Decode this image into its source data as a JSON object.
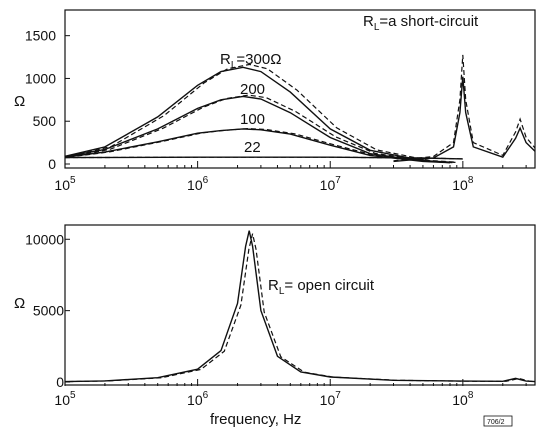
{
  "chart_data": [
    {
      "type": "line",
      "title": "",
      "xlabel": "",
      "ylabel": "Ω",
      "xscale": "log",
      "xlim": [
        100000,
        350000000
      ],
      "ylim": [
        0,
        1800
      ],
      "yticks": [
        "0",
        "500",
        "1000",
        "1500"
      ],
      "xticks": [
        {
          "base": "10",
          "exp": "5"
        },
        {
          "base": "10",
          "exp": "6"
        },
        {
          "base": "10",
          "exp": "7"
        },
        {
          "base": "10",
          "exp": "8"
        }
      ],
      "series": [
        {
          "name": "R_L=300Ω",
          "label": "RL=300Ω",
          "x": [
            100000,
            200000,
            500000,
            1000000,
            1500000,
            2200000,
            3000000,
            5000000,
            10000000,
            20000000,
            50000000,
            80000000
          ],
          "y": [
            90,
            200,
            550,
            920,
            1080,
            1130,
            1080,
            840,
            410,
            160,
            40,
            20
          ]
        },
        {
          "name": "200",
          "label": "200",
          "x": [
            100000,
            200000,
            500000,
            1000000,
            1500000,
            2200000,
            3000000,
            5000000,
            10000000,
            20000000,
            50000000,
            80000000
          ],
          "y": [
            85,
            170,
            410,
            650,
            750,
            790,
            760,
            600,
            310,
            120,
            35,
            18
          ]
        },
        {
          "name": "100",
          "label": "100",
          "x": [
            100000,
            200000,
            500000,
            1000000,
            1500000,
            2200000,
            3000000,
            5000000,
            10000000,
            20000000,
            50000000,
            80000000
          ],
          "y": [
            80,
            140,
            260,
            360,
            390,
            410,
            400,
            350,
            220,
            100,
            30,
            15
          ]
        },
        {
          "name": "22",
          "label": "22",
          "x": [
            100000,
            1000000,
            10000000,
            50000000,
            100000000
          ],
          "y": [
            75,
            80,
            80,
            70,
            60
          ]
        },
        {
          "name": "R_L=a short-circuit",
          "label": "RL=a short-circuit",
          "x": [
            30000000,
            60000000,
            85000000,
            95000000,
            100000000,
            105000000,
            120000000,
            200000000,
            250000000,
            270000000,
            300000000,
            350000000
          ],
          "y": [
            30,
            70,
            200,
            600,
            1020,
            600,
            200,
            80,
            300,
            420,
            250,
            150
          ]
        }
      ]
    },
    {
      "type": "line",
      "title": "",
      "xlabel": "frequency, Hz",
      "ylabel": "Ω",
      "xscale": "log",
      "xlim": [
        100000,
        350000000
      ],
      "ylim": [
        0,
        11000
      ],
      "yticks": [
        "0",
        "5000",
        "10000"
      ],
      "xticks": [
        {
          "base": "10",
          "exp": "5"
        },
        {
          "base": "10",
          "exp": "6"
        },
        {
          "base": "10",
          "exp": "7"
        },
        {
          "base": "10",
          "exp": "8"
        }
      ],
      "series": [
        {
          "name": "R_L= open circuit",
          "label": "RL= open circuit",
          "x": [
            100000,
            200000,
            500000,
            1000000,
            1500000,
            2000000,
            2300000,
            2450000,
            2600000,
            3000000,
            4000000,
            6000000,
            10000000,
            30000000,
            100000000,
            200000000,
            250000000,
            300000000,
            350000000
          ],
          "y": [
            30,
            80,
            300,
            900,
            2200,
            5500,
            9500,
            10600,
            9500,
            5000,
            1800,
            700,
            350,
            120,
            60,
            50,
            250,
            60,
            30
          ]
        }
      ]
    }
  ],
  "tag": "706/2"
}
